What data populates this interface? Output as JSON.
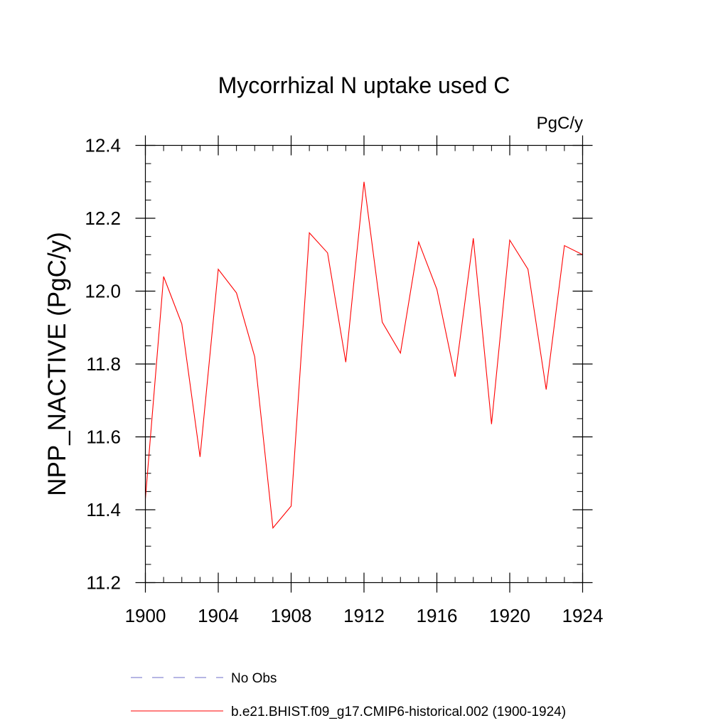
{
  "chart_data": {
    "type": "line",
    "title": "Mycorrhizal N uptake used C",
    "units_label": "PgC/y",
    "ylabel": "NPP_NACTIVE  (PgC/y)",
    "xlabel": "",
    "xlim": [
      1900,
      1924
    ],
    "ylim": [
      11.2,
      12.4
    ],
    "x_ticks": [
      1900,
      1904,
      1908,
      1912,
      1916,
      1920,
      1924
    ],
    "x_tick_labels": [
      "1900",
      "1904",
      "1908",
      "1912",
      "1916",
      "1920",
      "1924"
    ],
    "x_minor_step": 1,
    "y_ticks": [
      11.2,
      11.4,
      11.6,
      11.8,
      12.0,
      12.2,
      12.4
    ],
    "y_tick_labels": [
      "11.2",
      "11.4",
      "11.6",
      "11.8",
      "12.0",
      "12.2",
      "12.4"
    ],
    "y_minor_step": 0.05,
    "grid": false,
    "legend_position": "bottom",
    "series": [
      {
        "name": "b.e21.BHIST.f09_g17.CMIP6-historical.002 (1900-1924)",
        "color": "#ff0000",
        "style": "solid",
        "x": [
          1900,
          1901,
          1902,
          1903,
          1904,
          1905,
          1906,
          1907,
          1908,
          1909,
          1910,
          1911,
          1912,
          1913,
          1914,
          1915,
          1916,
          1917,
          1918,
          1919,
          1920,
          1921,
          1922,
          1923,
          1924
        ],
        "values": [
          11.43,
          12.04,
          11.91,
          11.545,
          12.06,
          11.995,
          11.82,
          11.35,
          11.41,
          12.16,
          12.105,
          11.805,
          12.3,
          11.915,
          11.83,
          12.135,
          12.005,
          11.765,
          12.145,
          11.635,
          12.14,
          12.06,
          11.73,
          12.125,
          12.1
        ]
      }
    ],
    "legend": [
      {
        "label": "No Obs",
        "color": "#6e6ec8",
        "style": "dashed"
      },
      {
        "label": "b.e21.BHIST.f09_g17.CMIP6-historical.002 (1900-1924)",
        "color": "#ff0000",
        "style": "solid"
      }
    ]
  }
}
